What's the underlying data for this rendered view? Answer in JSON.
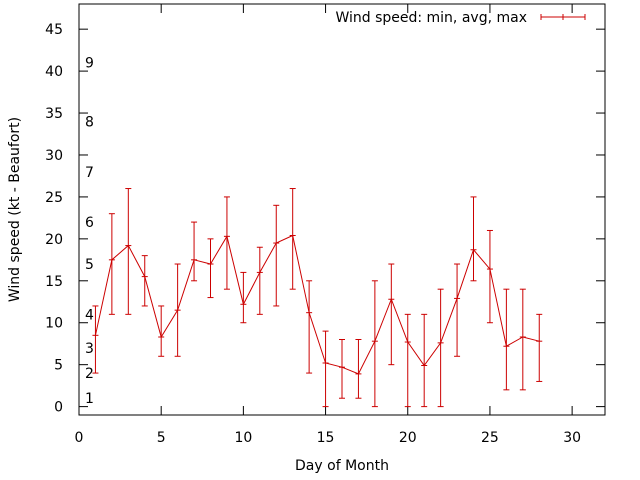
{
  "chart_data": {
    "type": "line",
    "title": "",
    "xlabel": "Day of Month",
    "ylabel": "Wind speed (kt - Beaufort)",
    "xlim": [
      0,
      32
    ],
    "ylim": [
      -1,
      48
    ],
    "xticks": [
      0,
      5,
      10,
      15,
      20,
      25,
      30
    ],
    "yticks": [
      0,
      5,
      10,
      15,
      20,
      25,
      30,
      35,
      40,
      45
    ],
    "grid": false,
    "legend_position": "top-right",
    "beaufort_labels": [
      {
        "label": "1",
        "y": 1
      },
      {
        "label": "2",
        "y": 4
      },
      {
        "label": "3",
        "y": 7
      },
      {
        "label": "4",
        "y": 11
      },
      {
        "label": "5",
        "y": 17
      },
      {
        "label": "6",
        "y": 22
      },
      {
        "label": "7",
        "y": 28
      },
      {
        "label": "8",
        "y": 34
      },
      {
        "label": "9",
        "y": 41
      }
    ],
    "series": [
      {
        "name": "Wind speed: min, avg, max",
        "color": "#cc0000",
        "x": [
          1,
          2,
          3,
          4,
          5,
          6,
          7,
          8,
          9,
          10,
          11,
          12,
          13,
          14,
          15,
          16,
          17,
          18,
          19,
          20,
          21,
          22,
          23,
          24,
          25,
          26,
          27,
          28
        ],
        "avg": [
          8.5,
          17.5,
          19.2,
          15.5,
          8.3,
          11.5,
          17.5,
          17.0,
          20.3,
          12.2,
          16.0,
          19.5,
          20.4,
          11.2,
          5.2,
          4.7,
          3.9,
          7.8,
          12.8,
          7.7,
          4.9,
          7.6,
          12.9,
          18.7,
          16.4,
          7.2,
          8.3,
          7.8
        ],
        "min": [
          4,
          11,
          11,
          12,
          6,
          6,
          15,
          13,
          14,
          10,
          11,
          12,
          14,
          4,
          0,
          1,
          1,
          0,
          5,
          0,
          0,
          0,
          6,
          15,
          10,
          2,
          2,
          3
        ],
        "max": [
          12,
          23,
          26,
          18,
          12,
          17,
          22,
          20,
          25,
          16,
          19,
          24,
          26,
          15,
          9,
          8,
          8,
          15,
          17,
          11,
          11,
          14,
          17,
          25,
          21,
          14,
          14,
          11
        ]
      }
    ]
  }
}
